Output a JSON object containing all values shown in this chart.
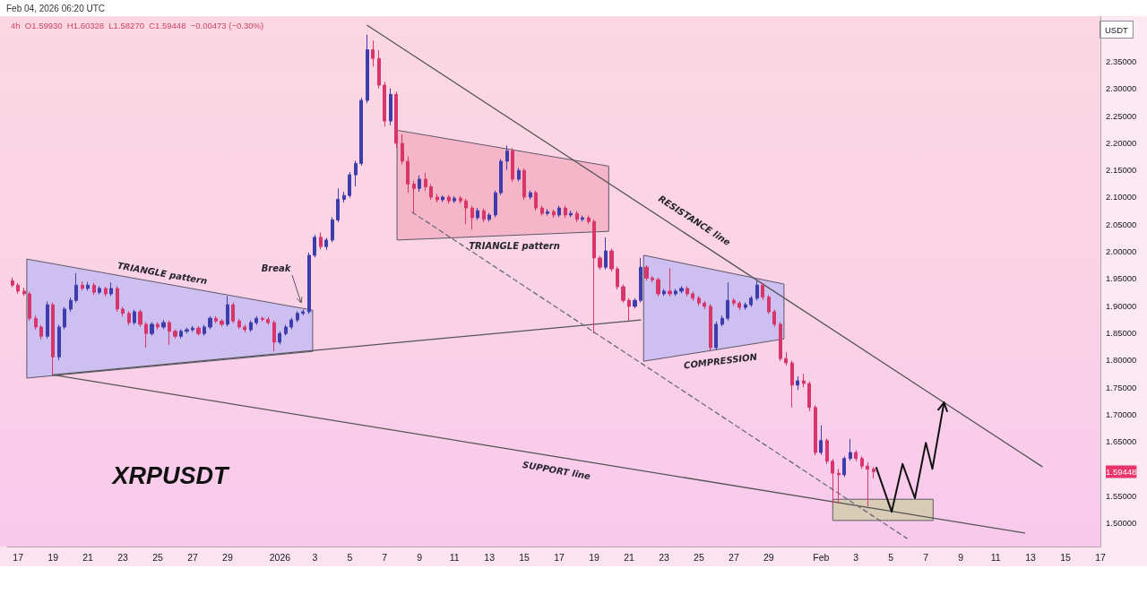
{
  "chart_data": {
    "type": "candlestick",
    "ylabel": "USDT",
    "xlim": [
      "2025-12-16T09:00",
      "2026-02-17T00:00"
    ],
    "ylim": [
      1.457,
      2.433
    ],
    "xticks": [
      {
        "value": "2025-12-17",
        "label": "17"
      },
      {
        "value": "2025-12-19",
        "label": "19"
      },
      {
        "value": "2025-12-21",
        "label": "21"
      },
      {
        "value": "2025-12-23",
        "label": "23"
      },
      {
        "value": "2025-12-25",
        "label": "25"
      },
      {
        "value": "2025-12-27",
        "label": "27"
      },
      {
        "value": "2025-12-29",
        "label": "29"
      },
      {
        "value": "2026-01-01",
        "label": "2026"
      },
      {
        "value": "2026-01-03",
        "label": "3"
      },
      {
        "value": "2026-01-05",
        "label": "5"
      },
      {
        "value": "2026-01-07",
        "label": "7"
      },
      {
        "value": "2026-01-09",
        "label": "9"
      },
      {
        "value": "2026-01-11",
        "label": "11"
      },
      {
        "value": "2026-01-13",
        "label": "13"
      },
      {
        "value": "2026-01-15",
        "label": "15"
      },
      {
        "value": "2026-01-17",
        "label": "17"
      },
      {
        "value": "2026-01-19",
        "label": "19"
      },
      {
        "value": "2026-01-21",
        "label": "21"
      },
      {
        "value": "2026-01-23",
        "label": "23"
      },
      {
        "value": "2026-01-25",
        "label": "25"
      },
      {
        "value": "2026-01-27",
        "label": "27"
      },
      {
        "value": "2026-01-29",
        "label": "29"
      },
      {
        "value": "2026-02-01",
        "label": "Feb"
      },
      {
        "value": "2026-02-03",
        "label": "3"
      },
      {
        "value": "2026-02-05",
        "label": "5"
      },
      {
        "value": "2026-02-07",
        "label": "7"
      },
      {
        "value": "2026-02-09",
        "label": "9"
      },
      {
        "value": "2026-02-11",
        "label": "11"
      },
      {
        "value": "2026-02-13",
        "label": "13"
      },
      {
        "value": "2026-02-15",
        "label": "15"
      },
      {
        "value": "2026-02-17",
        "label": "17"
      }
    ],
    "yticks": [
      {
        "value": 1.5,
        "label": "1.50000"
      },
      {
        "value": 1.55,
        "label": "1.55000"
      },
      1.59448,
      {
        "value": 1.65,
        "label": "1.65000"
      },
      {
        "value": 1.7,
        "label": "1.70000"
      },
      {
        "value": 1.75,
        "label": "1.75000"
      },
      {
        "value": 1.8,
        "label": "1.80000"
      },
      {
        "value": 1.85,
        "label": "1.85000"
      },
      {
        "value": 1.9,
        "label": "1.90000"
      },
      {
        "value": 1.95,
        "label": "1.95000"
      },
      {
        "value": 2.0,
        "label": "2.00000"
      },
      {
        "value": 2.05,
        "label": "2.05000"
      },
      {
        "value": 2.1,
        "label": "2.10000"
      },
      {
        "value": 2.15,
        "label": "2.15000"
      },
      {
        "value": 2.2,
        "label": "2.20000"
      },
      {
        "value": 2.25,
        "label": "2.25000"
      },
      {
        "value": 2.3,
        "label": "2.30000"
      },
      {
        "value": 2.35,
        "label": "2.35000"
      }
    ],
    "x": [
      "2025-12-16T16:00",
      "2025-12-17T00:00",
      "2025-12-17T08:00",
      "2025-12-17T16:00",
      "2025-12-18T00:00",
      "2025-12-18T08:00",
      "2025-12-18T16:00",
      "2025-12-19T00:00",
      "2025-12-19T08:00",
      "2025-12-19T16:00",
      "2025-12-20T00:00",
      "2025-12-20T08:00",
      "2025-12-20T16:00",
      "2025-12-21T00:00",
      "2025-12-21T08:00",
      "2025-12-21T16:00",
      "2025-12-22T00:00",
      "2025-12-22T08:00",
      "2025-12-22T16:00",
      "2025-12-23T00:00",
      "2025-12-23T08:00",
      "2025-12-23T16:00",
      "2025-12-24T00:00",
      "2025-12-24T08:00",
      "2025-12-24T16:00",
      "2025-12-25T00:00",
      "2025-12-25T08:00",
      "2025-12-25T16:00",
      "2025-12-26T00:00",
      "2025-12-26T08:00",
      "2025-12-26T16:00",
      "2025-12-27T00:00",
      "2025-12-27T08:00",
      "2025-12-27T16:00",
      "2025-12-28T00:00",
      "2025-12-28T08:00",
      "2025-12-28T16:00",
      "2025-12-29T00:00",
      "2025-12-29T08:00",
      "2025-12-29T16:00",
      "2025-12-30T00:00",
      "2025-12-30T08:00",
      "2025-12-30T16:00",
      "2025-12-31T00:00",
      "2025-12-31T08:00",
      "2025-12-31T16:00",
      "2026-01-01T00:00",
      "2026-01-01T08:00",
      "2026-01-01T16:00",
      "2026-01-02T00:00",
      "2026-01-02T08:00",
      "2026-01-02T16:00",
      "2026-01-03T00:00",
      "2026-01-03T08:00",
      "2026-01-03T16:00",
      "2026-01-04T00:00",
      "2026-01-04T08:00",
      "2026-01-04T16:00",
      "2026-01-05T00:00",
      "2026-01-05T08:00",
      "2026-01-05T16:00",
      "2026-01-06T00:00",
      "2026-01-06T08:00",
      "2026-01-06T16:00",
      "2026-01-07T00:00",
      "2026-01-07T08:00",
      "2026-01-07T16:00",
      "2026-01-08T00:00",
      "2026-01-08T08:00",
      "2026-01-08T16:00",
      "2026-01-09T00:00",
      "2026-01-09T08:00",
      "2026-01-09T16:00",
      "2026-01-10T00:00",
      "2026-01-10T08:00",
      "2026-01-10T16:00",
      "2026-01-11T00:00",
      "2026-01-11T08:00",
      "2026-01-11T16:00",
      "2026-01-12T00:00",
      "2026-01-12T08:00",
      "2026-01-12T16:00",
      "2026-01-13T00:00",
      "2026-01-13T08:00",
      "2026-01-13T16:00",
      "2026-01-14T00:00",
      "2026-01-14T08:00",
      "2026-01-14T16:00",
      "2026-01-15T00:00",
      "2026-01-15T08:00",
      "2026-01-15T16:00",
      "2026-01-16T00:00",
      "2026-01-16T08:00",
      "2026-01-16T16:00",
      "2026-01-17T00:00",
      "2026-01-17T08:00",
      "2026-01-17T16:00",
      "2026-01-18T00:00",
      "2026-01-18T08:00",
      "2026-01-18T16:00",
      "2026-01-19T00:00",
      "2026-01-19T08:00",
      "2026-01-19T16:00",
      "2026-01-20T00:00",
      "2026-01-20T08:00",
      "2026-01-20T16:00",
      "2026-01-21T00:00",
      "2026-01-21T08:00",
      "2026-01-21T16:00",
      "2026-01-22T00:00",
      "2026-01-22T08:00",
      "2026-01-22T16:00",
      "2026-01-23T00:00",
      "2026-01-23T08:00",
      "2026-01-23T16:00",
      "2026-01-24T00:00",
      "2026-01-24T08:00",
      "2026-01-24T16:00",
      "2026-01-25T00:00",
      "2026-01-25T08:00",
      "2026-01-25T16:00",
      "2026-01-26T00:00",
      "2026-01-26T08:00",
      "2026-01-26T16:00",
      "2026-01-27T00:00",
      "2026-01-27T08:00",
      "2026-01-27T16:00",
      "2026-01-28T00:00",
      "2026-01-28T08:00",
      "2026-01-28T16:00",
      "2026-01-29T00:00",
      "2026-01-29T08:00",
      "2026-01-29T16:00",
      "2026-01-30T00:00",
      "2026-01-30T08:00",
      "2026-01-30T16:00",
      "2026-01-31T00:00",
      "2026-01-31T08:00",
      "2026-01-31T16:00",
      "2026-02-01T00:00",
      "2026-02-01T08:00",
      "2026-02-01T16:00",
      "2026-02-02T00:00",
      "2026-02-02T08:00",
      "2026-02-02T16:00",
      "2026-02-03T00:00",
      "2026-02-03T08:00",
      "2026-02-03T16:00",
      "2026-02-04T00:00"
    ],
    "ohlc": [
      [
        1.946,
        1.952,
        1.934,
        1.938
      ],
      [
        1.938,
        1.942,
        1.922,
        1.927
      ],
      [
        1.927,
        1.933,
        1.918,
        1.922
      ],
      [
        1.922,
        1.926,
        1.872,
        1.877
      ],
      [
        1.877,
        1.882,
        1.856,
        1.861
      ],
      [
        1.861,
        1.865,
        1.838,
        1.844
      ],
      [
        1.844,
        1.908,
        1.84,
        1.902
      ],
      [
        1.902,
        1.906,
        1.773,
        1.806
      ],
      [
        1.806,
        1.865,
        1.8,
        1.861
      ],
      [
        1.861,
        1.898,
        1.857,
        1.894
      ],
      [
        1.894,
        1.915,
        1.889,
        1.91
      ],
      [
        1.91,
        1.96,
        1.906,
        1.938
      ],
      [
        1.938,
        1.945,
        1.928,
        1.932
      ],
      [
        1.932,
        1.944,
        1.928,
        1.938
      ],
      [
        1.938,
        1.942,
        1.92,
        1.925
      ],
      [
        1.925,
        1.936,
        1.921,
        1.932
      ],
      [
        1.932,
        1.935,
        1.917,
        1.922
      ],
      [
        1.922,
        1.943,
        1.918,
        1.932
      ],
      [
        1.932,
        1.936,
        1.889,
        1.894
      ],
      [
        1.894,
        1.898,
        1.88,
        1.886
      ],
      [
        1.886,
        1.89,
        1.864,
        1.869
      ],
      [
        1.869,
        1.893,
        1.865,
        1.889
      ],
      [
        1.889,
        1.893,
        1.861,
        1.866
      ],
      [
        1.866,
        1.87,
        1.823,
        1.849
      ],
      [
        1.849,
        1.87,
        1.845,
        1.866
      ],
      [
        1.866,
        1.87,
        1.856,
        1.861
      ],
      [
        1.861,
        1.874,
        1.857,
        1.869
      ],
      [
        1.869,
        1.873,
        1.828,
        1.853
      ],
      [
        1.853,
        1.857,
        1.84,
        1.844
      ],
      [
        1.844,
        1.857,
        1.84,
        1.853
      ],
      [
        1.853,
        1.86,
        1.849,
        1.856
      ],
      [
        1.856,
        1.863,
        1.852,
        1.859
      ],
      [
        1.859,
        1.863,
        1.845,
        1.849
      ],
      [
        1.849,
        1.865,
        1.845,
        1.861
      ],
      [
        1.861,
        1.881,
        1.857,
        1.877
      ],
      [
        1.877,
        1.881,
        1.868,
        1.872
      ],
      [
        1.872,
        1.876,
        1.862,
        1.866
      ],
      [
        1.866,
        1.918,
        1.862,
        1.902
      ],
      [
        1.902,
        1.906,
        1.868,
        1.872
      ],
      [
        1.872,
        1.876,
        1.857,
        1.861
      ],
      [
        1.861,
        1.865,
        1.851,
        1.856
      ],
      [
        1.856,
        1.873,
        1.852,
        1.869
      ],
      [
        1.869,
        1.881,
        1.865,
        1.877
      ],
      [
        1.877,
        1.88,
        1.871,
        1.875
      ],
      [
        1.875,
        1.879,
        1.865,
        1.869
      ],
      [
        1.869,
        1.873,
        1.816,
        1.833
      ],
      [
        1.833,
        1.853,
        1.829,
        1.849
      ],
      [
        1.849,
        1.865,
        1.845,
        1.861
      ],
      [
        1.861,
        1.878,
        1.857,
        1.874
      ],
      [
        1.874,
        1.89,
        1.87,
        1.886
      ],
      [
        1.886,
        1.893,
        1.882,
        1.889
      ],
      [
        1.889,
        1.998,
        1.885,
        1.993
      ],
      [
        1.993,
        2.031,
        1.989,
        2.026
      ],
      [
        2.026,
        2.035,
        2.004,
        2.009
      ],
      [
        2.009,
        2.025,
        2.003,
        2.021
      ],
      [
        2.021,
        2.063,
        2.017,
        2.058
      ],
      [
        2.058,
        2.116,
        2.054,
        2.096
      ],
      [
        2.096,
        2.11,
        2.09,
        2.103
      ],
      [
        2.103,
        2.146,
        2.099,
        2.141
      ],
      [
        2.141,
        2.167,
        2.12,
        2.162
      ],
      [
        2.162,
        2.283,
        2.158,
        2.278
      ],
      [
        2.278,
        2.399,
        2.273,
        2.371
      ],
      [
        2.371,
        2.388,
        2.34,
        2.355
      ],
      [
        2.355,
        2.37,
        2.3,
        2.306
      ],
      [
        2.306,
        2.312,
        2.23,
        2.24
      ],
      [
        2.24,
        2.3,
        2.232,
        2.289
      ],
      [
        2.289,
        2.294,
        2.19,
        2.199
      ],
      [
        2.199,
        2.215,
        2.16,
        2.166
      ],
      [
        2.166,
        2.175,
        2.108,
        2.124
      ],
      [
        2.124,
        2.13,
        2.07,
        2.116
      ],
      [
        2.116,
        2.14,
        2.11,
        2.133
      ],
      [
        2.133,
        2.145,
        2.112,
        2.119
      ],
      [
        2.119,
        2.124,
        2.095,
        2.1
      ],
      [
        2.1,
        2.106,
        2.09,
        2.095
      ],
      [
        2.095,
        2.103,
        2.091,
        2.1
      ],
      [
        2.1,
        2.104,
        2.088,
        2.093
      ],
      [
        2.093,
        2.102,
        2.089,
        2.098
      ],
      [
        2.098,
        2.102,
        2.088,
        2.093
      ],
      [
        2.093,
        2.097,
        2.05,
        2.08
      ],
      [
        2.08,
        2.084,
        2.04,
        2.062
      ],
      [
        2.062,
        2.08,
        2.058,
        2.075
      ],
      [
        2.075,
        2.079,
        2.054,
        2.059
      ],
      [
        2.059,
        2.071,
        2.055,
        2.067
      ],
      [
        2.067,
        2.112,
        2.063,
        2.108
      ],
      [
        2.108,
        2.17,
        2.104,
        2.166
      ],
      [
        2.166,
        2.195,
        2.15,
        2.185
      ],
      [
        2.185,
        2.19,
        2.128,
        2.133
      ],
      [
        2.133,
        2.154,
        2.129,
        2.149
      ],
      [
        2.149,
        2.153,
        2.095,
        2.1
      ],
      [
        2.1,
        2.112,
        2.096,
        2.108
      ],
      [
        2.108,
        2.112,
        2.075,
        2.08
      ],
      [
        2.08,
        2.084,
        2.066,
        2.07
      ],
      [
        2.07,
        2.078,
        2.066,
        2.073
      ],
      [
        2.073,
        2.077,
        2.062,
        2.067
      ],
      [
        2.067,
        2.084,
        2.063,
        2.08
      ],
      [
        2.08,
        2.084,
        2.062,
        2.067
      ],
      [
        2.067,
        2.075,
        2.063,
        2.07
      ],
      [
        2.07,
        2.074,
        2.054,
        2.059
      ],
      [
        2.059,
        2.066,
        2.055,
        2.062
      ],
      [
        2.062,
        2.066,
        2.05,
        2.055
      ],
      [
        2.055,
        2.059,
        1.849,
        1.988
      ],
      [
        1.988,
        1.992,
        1.966,
        1.971
      ],
      [
        1.971,
        2.026,
        1.967,
        2.001
      ],
      [
        2.001,
        2.005,
        1.963,
        1.968
      ],
      [
        1.968,
        1.972,
        1.93,
        1.935
      ],
      [
        1.935,
        1.939,
        1.906,
        1.91
      ],
      [
        1.91,
        1.914,
        1.872,
        1.899
      ],
      [
        1.899,
        1.914,
        1.895,
        1.91
      ],
      [
        1.91,
        1.988,
        1.906,
        1.971
      ],
      [
        1.971,
        1.975,
        1.946,
        1.951
      ],
      [
        1.951,
        1.955,
        1.943,
        1.948
      ],
      [
        1.948,
        1.952,
        1.917,
        1.922
      ],
      [
        1.922,
        1.931,
        1.918,
        1.927
      ],
      [
        1.927,
        1.969,
        1.917,
        1.922
      ],
      [
        1.922,
        1.931,
        1.918,
        1.927
      ],
      [
        1.927,
        1.936,
        1.923,
        1.932
      ],
      [
        1.932,
        1.936,
        1.917,
        1.922
      ],
      [
        1.922,
        1.926,
        1.909,
        1.914
      ],
      [
        1.914,
        1.918,
        1.9,
        1.905
      ],
      [
        1.905,
        1.909,
        1.894,
        1.899
      ],
      [
        1.899,
        1.903,
        1.816,
        1.823
      ],
      [
        1.823,
        1.871,
        1.819,
        1.866
      ],
      [
        1.866,
        1.882,
        1.862,
        1.877
      ],
      [
        1.877,
        1.943,
        1.873,
        1.91
      ],
      [
        1.91,
        1.914,
        1.9,
        1.905
      ],
      [
        1.905,
        1.909,
        1.892,
        1.897
      ],
      [
        1.897,
        1.906,
        1.893,
        1.902
      ],
      [
        1.902,
        1.918,
        1.898,
        1.914
      ],
      [
        1.914,
        1.946,
        1.91,
        1.938
      ],
      [
        1.938,
        1.942,
        1.911,
        1.916
      ],
      [
        1.916,
        1.92,
        1.885,
        1.889
      ],
      [
        1.889,
        1.893,
        1.861,
        1.866
      ],
      [
        1.866,
        1.87,
        1.798,
        1.803
      ],
      [
        1.803,
        1.815,
        1.79,
        1.795
      ],
      [
        1.795,
        1.799,
        1.713,
        1.754
      ],
      [
        1.754,
        1.77,
        1.745,
        1.762
      ],
      [
        1.762,
        1.775,
        1.75,
        1.757
      ],
      [
        1.757,
        1.761,
        1.706,
        1.713
      ],
      [
        1.713,
        1.717,
        1.625,
        1.63
      ],
      [
        1.63,
        1.68,
        1.626,
        1.652
      ],
      [
        1.652,
        1.656,
        1.609,
        1.614
      ],
      [
        1.614,
        1.618,
        1.535,
        1.592
      ],
      [
        1.592,
        1.6,
        1.536,
        1.589
      ],
      [
        1.589,
        1.623,
        1.585,
        1.619
      ],
      [
        1.619,
        1.655,
        1.615,
        1.63
      ],
      [
        1.63,
        1.634,
        1.614,
        1.619
      ],
      [
        1.619,
        1.623,
        1.6,
        1.605
      ],
      [
        1.605,
        1.612,
        1.531,
        1.5993
      ],
      [
        1.5993,
        1.60328,
        1.5827,
        1.59448
      ]
    ],
    "series": [
      {
        "type": "line",
        "color": "#555555",
        "x": [
          "2026-01-06T00:00",
          "2026-02-13T16:00"
        ],
        "values": [
          2.416,
          1.604
        ]
      },
      {
        "type": "line",
        "color": "#555555",
        "x": [
          "2025-12-19T00:00",
          "2026-02-12T16:00"
        ],
        "values": [
          1.773,
          1.482
        ]
      },
      {
        "type": "line",
        "color": "#555555",
        "x": [
          "2025-12-19T00:00",
          "2026-01-21T16:00"
        ],
        "values": [
          1.773,
          1.874
        ]
      },
      {
        "type": "line",
        "color": "#6b6b75",
        "line_style": "dashed",
        "x": [
          "2026-01-08T14:00",
          "2026-02-05T22:00"
        ],
        "values": [
          2.072,
          1.472
        ]
      },
      {
        "type": "line",
        "color": "#111111",
        "x": [
          "2026-02-04T04:00",
          "2026-02-05T01:00",
          "2026-02-05T16:00",
          "2026-02-06T09:00",
          "2026-02-07T00:00",
          "2026-02-07T09:00",
          "2026-02-08T01:00"
        ],
        "values": [
          1.602,
          1.521,
          1.609,
          1.546,
          1.648,
          1.6,
          1.722
        ]
      },
      {
        "type": "line",
        "color": "#cdbff0",
        "x": [
          "2025-12-17T12:00",
          "2026-01-02T21:00"
        ],
        "values": [
          null,
          null
        ],
        "lower": [
          1.767,
          1.816
        ],
        "upper": [
          1.986,
          1.892
        ]
      },
      {
        "type": "line",
        "color": "#f5b6ca",
        "x": [
          "2026-01-07T17:00",
          "2026-01-19T20:00"
        ],
        "values": [
          null,
          null
        ],
        "lower": [
          2.021,
          2.037
        ],
        "upper": [
          2.223,
          2.157
        ]
      },
      {
        "type": "line",
        "color": "#cdbff0",
        "x": [
          "2026-01-21T20:00",
          "2026-01-29T21:00"
        ],
        "values": [
          null,
          null
        ],
        "lower": [
          1.798,
          1.839
        ],
        "upper": [
          1.993,
          1.94
        ]
      },
      {
        "type": "line",
        "color": "#d9ccb6",
        "x": [
          "2026-02-01T16:00",
          "2026-02-07T10:00"
        ],
        "values": [
          null,
          null
        ],
        "lower": [
          1.505,
          1.505
        ],
        "upper": [
          1.544,
          1.544
        ]
      }
    ],
    "annotations": [
      "Feb 04, 2026 06:20 UTC",
      "4h  O1.59930  H1.60328  L1.58270  C1.59448  −0.00473 (−0.30%)",
      "XRPUSDT",
      "TRIANGLE pattern",
      "Break",
      "TRIANGLE pattern",
      "RESISTANCE line",
      "COMPRESSION",
      "SUPPORT line"
    ]
  }
}
